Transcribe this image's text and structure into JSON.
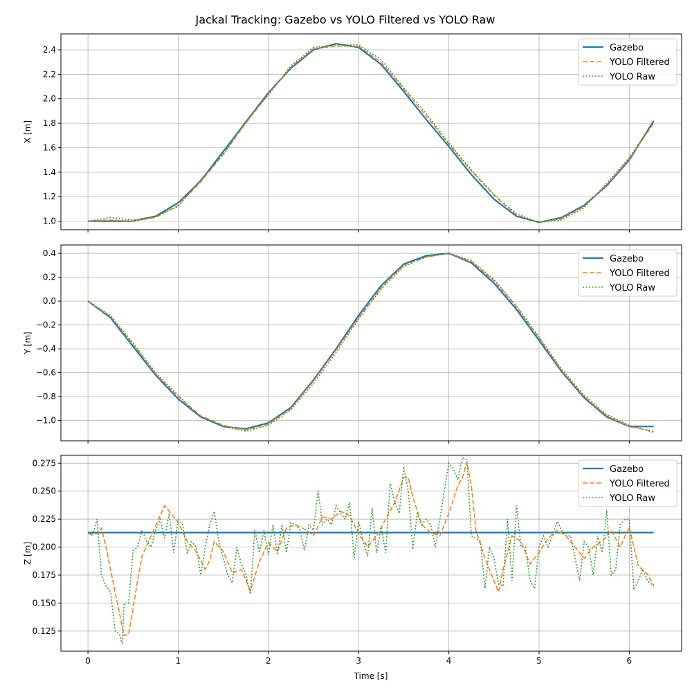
{
  "figure": {
    "title": "Jackal Tracking: Gazebo vs YOLO Filtered vs YOLO Raw",
    "xlabel": "Time [s]"
  },
  "colors": {
    "gazebo": "#1f77b4",
    "yolo_filtered": "#ff7f0e",
    "yolo_raw": "#2ca02c",
    "grid": "#b0b0b0"
  },
  "chart_data": [
    {
      "type": "line",
      "ylabel": "X [m]",
      "xlim": [
        -0.3,
        6.58
      ],
      "ylim": [
        0.93,
        2.53
      ],
      "xticks": [
        0,
        1,
        2,
        3,
        4,
        5,
        6
      ],
      "yticks": [
        1.0,
        1.2,
        1.4,
        1.6,
        1.8,
        2.0,
        2.2,
        2.4
      ],
      "ytick_labels": [
        "1.0",
        "1.2",
        "1.4",
        "1.6",
        "1.8",
        "2.0",
        "2.2",
        "2.4"
      ],
      "grid": true,
      "legend": "top-right",
      "series": [
        {
          "name": "Gazebo",
          "style": "solid",
          "color_key": "gazebo",
          "x": [
            0,
            0.25,
            0.5,
            0.75,
            1.0,
            1.25,
            1.5,
            1.75,
            2.0,
            2.25,
            2.5,
            2.75,
            3.0,
            3.25,
            3.5,
            3.75,
            4.0,
            4.25,
            4.5,
            4.75,
            5.0,
            5.25,
            5.5,
            5.75,
            6.0,
            6.27
          ],
          "y": [
            1.0,
            1.0,
            1.0,
            1.04,
            1.15,
            1.33,
            1.57,
            1.81,
            2.05,
            2.25,
            2.4,
            2.45,
            2.42,
            2.28,
            2.06,
            1.83,
            1.61,
            1.38,
            1.18,
            1.04,
            0.99,
            1.03,
            1.13,
            1.29,
            1.5,
            1.82
          ]
        },
        {
          "name": "YOLO Filtered",
          "style": "dashed",
          "color_key": "yolo_filtered",
          "x": [
            0,
            0.25,
            0.5,
            0.75,
            1.0,
            1.25,
            1.5,
            1.75,
            2.0,
            2.25,
            2.5,
            2.75,
            3.0,
            3.25,
            3.5,
            3.75,
            4.0,
            4.25,
            4.5,
            4.75,
            5.0,
            5.25,
            5.5,
            5.75,
            6.0,
            6.27
          ],
          "y": [
            1.0,
            1.01,
            1.0,
            1.03,
            1.13,
            1.32,
            1.55,
            1.8,
            2.04,
            2.26,
            2.41,
            2.43,
            2.43,
            2.3,
            2.08,
            1.86,
            1.63,
            1.41,
            1.21,
            1.05,
            0.99,
            1.02,
            1.12,
            1.3,
            1.51,
            1.8
          ]
        },
        {
          "name": "YOLO Raw",
          "style": "dotted",
          "color_key": "yolo_raw",
          "x": [
            0,
            0.25,
            0.5,
            0.75,
            1.0,
            1.25,
            1.5,
            1.75,
            2.0,
            2.25,
            2.5,
            2.75,
            3.0,
            3.25,
            3.5,
            3.75,
            4.0,
            4.25,
            4.5,
            4.75,
            5.0,
            5.25,
            5.5,
            5.75,
            6.0,
            6.27
          ],
          "y": [
            1.0,
            1.03,
            1.01,
            1.04,
            1.12,
            1.34,
            1.54,
            1.82,
            2.03,
            2.27,
            2.42,
            2.44,
            2.44,
            2.32,
            2.09,
            1.88,
            1.64,
            1.42,
            1.22,
            1.06,
            0.99,
            1.01,
            1.11,
            1.31,
            1.52,
            1.81
          ]
        }
      ]
    },
    {
      "type": "line",
      "ylabel": "Y [m]",
      "xlim": [
        -0.3,
        6.58
      ],
      "ylim": [
        -1.17,
        0.47
      ],
      "xticks": [
        0,
        1,
        2,
        3,
        4,
        5,
        6
      ],
      "yticks": [
        -1.0,
        -0.8,
        -0.6,
        -0.4,
        -0.2,
        0.0,
        0.2,
        0.4
      ],
      "ytick_labels": [
        "−1.0",
        "−0.8",
        "−0.6",
        "−0.4",
        "−0.2",
        "0.0",
        "0.2",
        "0.4"
      ],
      "grid": true,
      "legend": "top-right",
      "series": [
        {
          "name": "Gazebo",
          "style": "solid",
          "color_key": "gazebo",
          "x": [
            0,
            0.25,
            0.5,
            0.75,
            1.0,
            1.25,
            1.5,
            1.75,
            2.0,
            2.25,
            2.5,
            2.75,
            3.0,
            3.25,
            3.5,
            3.75,
            4.0,
            4.25,
            4.5,
            4.75,
            5.0,
            5.25,
            5.5,
            5.75,
            6.0,
            6.27
          ],
          "y": [
            0.0,
            -0.14,
            -0.38,
            -0.62,
            -0.82,
            -0.97,
            -1.05,
            -1.07,
            -1.02,
            -0.89,
            -0.66,
            -0.4,
            -0.12,
            0.13,
            0.31,
            0.38,
            0.4,
            0.32,
            0.15,
            -0.07,
            -0.33,
            -0.59,
            -0.81,
            -0.97,
            -1.05,
            -1.05
          ]
        },
        {
          "name": "YOLO Filtered",
          "style": "dashed",
          "color_key": "yolo_filtered",
          "x": [
            0,
            0.25,
            0.5,
            0.75,
            1.0,
            1.25,
            1.5,
            1.75,
            2.0,
            2.25,
            2.5,
            2.75,
            3.0,
            3.25,
            3.5,
            3.75,
            4.0,
            4.25,
            4.5,
            4.75,
            5.0,
            5.25,
            5.5,
            5.75,
            6.0,
            6.27
          ],
          "y": [
            0.0,
            -0.13,
            -0.36,
            -0.61,
            -0.8,
            -0.96,
            -1.04,
            -1.08,
            -1.03,
            -0.9,
            -0.67,
            -0.41,
            -0.14,
            0.11,
            0.3,
            0.37,
            0.4,
            0.33,
            0.17,
            -0.05,
            -0.31,
            -0.58,
            -0.8,
            -0.96,
            -1.05,
            -1.09
          ]
        },
        {
          "name": "YOLO Raw",
          "style": "dotted",
          "color_key": "yolo_raw",
          "x": [
            0,
            0.25,
            0.5,
            0.75,
            1.0,
            1.25,
            1.5,
            1.75,
            2.0,
            2.25,
            2.5,
            2.75,
            3.0,
            3.25,
            3.5,
            3.75,
            4.0,
            4.25,
            4.5,
            4.75,
            5.0,
            5.25,
            5.5,
            5.75,
            6.0,
            6.27
          ],
          "y": [
            0.0,
            -0.12,
            -0.35,
            -0.6,
            -0.79,
            -0.97,
            -1.05,
            -1.09,
            -1.04,
            -0.91,
            -0.69,
            -0.43,
            -0.15,
            0.1,
            0.29,
            0.37,
            0.4,
            0.34,
            0.18,
            -0.04,
            -0.3,
            -0.57,
            -0.79,
            -0.95,
            -1.04,
            -1.1
          ]
        }
      ]
    },
    {
      "type": "line",
      "ylabel": "Z [m]",
      "xlim": [
        -0.3,
        6.58
      ],
      "ylim": [
        0.107,
        0.282
      ],
      "xticks": [
        0,
        1,
        2,
        3,
        4,
        5,
        6
      ],
      "xtick_labels": [
        "0",
        "1",
        "2",
        "3",
        "4",
        "5",
        "6"
      ],
      "yticks": [
        0.125,
        0.15,
        0.175,
        0.2,
        0.225,
        0.25,
        0.275
      ],
      "ytick_labels": [
        "0.125",
        "0.150",
        "0.175",
        "0.200",
        "0.225",
        "0.250",
        "0.275"
      ],
      "grid": true,
      "legend": "top-right",
      "series": [
        {
          "name": "Gazebo",
          "style": "solid",
          "color_key": "gazebo",
          "x": [
            0,
            6.27
          ],
          "y": [
            0.213,
            0.213
          ]
        },
        {
          "name": "YOLO Filtered",
          "style": "dashed",
          "color_key": "yolo_filtered",
          "x": [
            0,
            0.1,
            0.15,
            0.2,
            0.25,
            0.3,
            0.35,
            0.4,
            0.45,
            0.5,
            0.55,
            0.6,
            0.7,
            0.8,
            0.85,
            0.9,
            1.0,
            1.1,
            1.2,
            1.3,
            1.35,
            1.4,
            1.5,
            1.6,
            1.7,
            1.8,
            1.9,
            2.0,
            2.1,
            2.2,
            2.3,
            2.4,
            2.5,
            2.6,
            2.7,
            2.8,
            2.9,
            3.0,
            3.1,
            3.2,
            3.3,
            3.4,
            3.5,
            3.55,
            3.6,
            3.7,
            3.8,
            3.9,
            4.0,
            4.1,
            4.15,
            4.2,
            4.25,
            4.3,
            4.4,
            4.5,
            4.55,
            4.6,
            4.7,
            4.8,
            4.9,
            5.0,
            5.1,
            5.2,
            5.3,
            5.4,
            5.5,
            5.6,
            5.7,
            5.8,
            5.9,
            6.0,
            6.1,
            6.2,
            6.27
          ],
          "y": [
            0.212,
            0.212,
            0.217,
            0.2,
            0.18,
            0.16,
            0.141,
            0.121,
            0.122,
            0.145,
            0.17,
            0.192,
            0.21,
            0.228,
            0.237,
            0.232,
            0.222,
            0.205,
            0.196,
            0.18,
            0.188,
            0.205,
            0.196,
            0.177,
            0.18,
            0.161,
            0.187,
            0.204,
            0.196,
            0.217,
            0.22,
            0.216,
            0.21,
            0.227,
            0.225,
            0.232,
            0.228,
            0.212,
            0.2,
            0.21,
            0.225,
            0.24,
            0.262,
            0.262,
            0.245,
            0.22,
            0.213,
            0.21,
            0.23,
            0.255,
            0.262,
            0.276,
            0.255,
            0.215,
            0.19,
            0.17,
            0.16,
            0.18,
            0.21,
            0.205,
            0.185,
            0.195,
            0.208,
            0.215,
            0.21,
            0.2,
            0.19,
            0.2,
            0.205,
            0.215,
            0.2,
            0.218,
            0.183,
            0.176,
            0.166
          ]
        },
        {
          "name": "YOLO Raw",
          "style": "dotted",
          "color_key": "yolo_raw",
          "x": [
            0,
            0.05,
            0.1,
            0.15,
            0.2,
            0.25,
            0.3,
            0.35,
            0.38,
            0.4,
            0.45,
            0.5,
            0.55,
            0.6,
            0.65,
            0.7,
            0.75,
            0.8,
            0.85,
            0.9,
            0.95,
            1.0,
            1.05,
            1.1,
            1.15,
            1.2,
            1.25,
            1.3,
            1.35,
            1.4,
            1.45,
            1.5,
            1.55,
            1.6,
            1.65,
            1.7,
            1.75,
            1.8,
            1.85,
            1.9,
            1.95,
            2.0,
            2.05,
            2.1,
            2.15,
            2.2,
            2.25,
            2.3,
            2.35,
            2.4,
            2.45,
            2.5,
            2.55,
            2.6,
            2.65,
            2.7,
            2.75,
            2.8,
            2.85,
            2.9,
            2.95,
            3.0,
            3.05,
            3.1,
            3.15,
            3.2,
            3.25,
            3.3,
            3.35,
            3.4,
            3.45,
            3.5,
            3.55,
            3.6,
            3.65,
            3.7,
            3.75,
            3.8,
            3.85,
            3.9,
            3.95,
            4.0,
            4.05,
            4.1,
            4.15,
            4.2,
            4.25,
            4.3,
            4.35,
            4.4,
            4.45,
            4.5,
            4.55,
            4.6,
            4.65,
            4.7,
            4.75,
            4.8,
            4.85,
            4.9,
            4.95,
            5.0,
            5.05,
            5.1,
            5.15,
            5.2,
            5.25,
            5.3,
            5.35,
            5.4,
            5.45,
            5.5,
            5.55,
            5.6,
            5.65,
            5.7,
            5.75,
            5.8,
            5.85,
            5.9,
            5.95,
            6.0,
            6.05,
            6.1,
            6.15,
            6.2,
            6.27
          ],
          "y": [
            0.213,
            0.21,
            0.225,
            0.175,
            0.165,
            0.16,
            0.125,
            0.122,
            0.113,
            0.15,
            0.15,
            0.197,
            0.2,
            0.215,
            0.205,
            0.2,
            0.215,
            0.225,
            0.208,
            0.23,
            0.195,
            0.225,
            0.22,
            0.195,
            0.205,
            0.2,
            0.175,
            0.2,
            0.22,
            0.232,
            0.205,
            0.19,
            0.175,
            0.168,
            0.2,
            0.185,
            0.175,
            0.158,
            0.215,
            0.195,
            0.215,
            0.193,
            0.22,
            0.193,
            0.22,
            0.195,
            0.222,
            0.22,
            0.215,
            0.197,
            0.22,
            0.215,
            0.25,
            0.22,
            0.225,
            0.22,
            0.237,
            0.23,
            0.225,
            0.24,
            0.19,
            0.223,
            0.205,
            0.192,
            0.235,
            0.195,
            0.218,
            0.195,
            0.257,
            0.24,
            0.23,
            0.272,
            0.25,
            0.198,
            0.23,
            0.22,
            0.225,
            0.22,
            0.2,
            0.225,
            0.25,
            0.275,
            0.27,
            0.26,
            0.28,
            0.278,
            0.21,
            0.208,
            0.205,
            0.163,
            0.2,
            0.19,
            0.167,
            0.165,
            0.225,
            0.17,
            0.237,
            0.2,
            0.2,
            0.17,
            0.163,
            0.2,
            0.21,
            0.2,
            0.21,
            0.223,
            0.215,
            0.21,
            0.21,
            0.19,
            0.17,
            0.205,
            0.2,
            0.175,
            0.21,
            0.195,
            0.233,
            0.175,
            0.18,
            0.22,
            0.225,
            0.225,
            0.162,
            0.17,
            0.18,
            0.17,
            0.165
          ]
        }
      ]
    }
  ]
}
